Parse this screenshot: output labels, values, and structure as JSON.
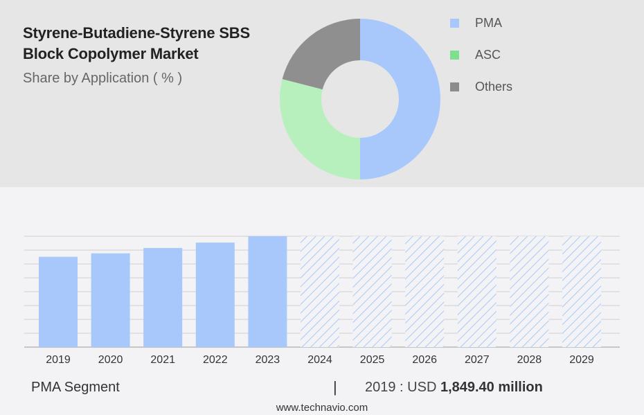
{
  "header": {
    "title": "Styrene-Butadiene-Styrene SBS Block Copolymer Market",
    "subtitle": "Share by Application ( % )"
  },
  "legend": [
    {
      "label": "PMA",
      "color": "#a8c8fb"
    },
    {
      "label": "ASC",
      "color": "#7ee08e"
    },
    {
      "label": "Others",
      "color": "#8c8c8c"
    }
  ],
  "footer": {
    "segment": "PMA Segment",
    "divider": "|",
    "year_label": "2019 : USD",
    "value_label": "1,849.40 million",
    "site": "www.technavio.com"
  },
  "chart_data": [
    {
      "type": "pie",
      "variant": "donut",
      "slices": [
        {
          "label": "PMA",
          "value": 50,
          "color": "#a8c8fb"
        },
        {
          "label": "ASC",
          "value": 29,
          "color": "#b7f0bd"
        },
        {
          "label": "Others",
          "value": 21,
          "color": "#8f8f8f"
        }
      ]
    },
    {
      "type": "bar",
      "categories": [
        "2019",
        "2020",
        "2021",
        "2022",
        "2023",
        "2024",
        "2025",
        "2026",
        "2027",
        "2028",
        "2029"
      ],
      "values": [
        1849.4,
        1920,
        2030,
        2140,
        2270,
        null,
        null,
        null,
        null,
        null,
        null
      ],
      "forecast_categories": [
        "2024",
        "2025",
        "2026",
        "2027",
        "2028",
        "2029"
      ],
      "ylim": [
        0,
        2270
      ],
      "grid": true,
      "colors": {
        "actual": "#a8c8fb",
        "forecast_hatch": "#a8c8fb"
      }
    }
  ]
}
